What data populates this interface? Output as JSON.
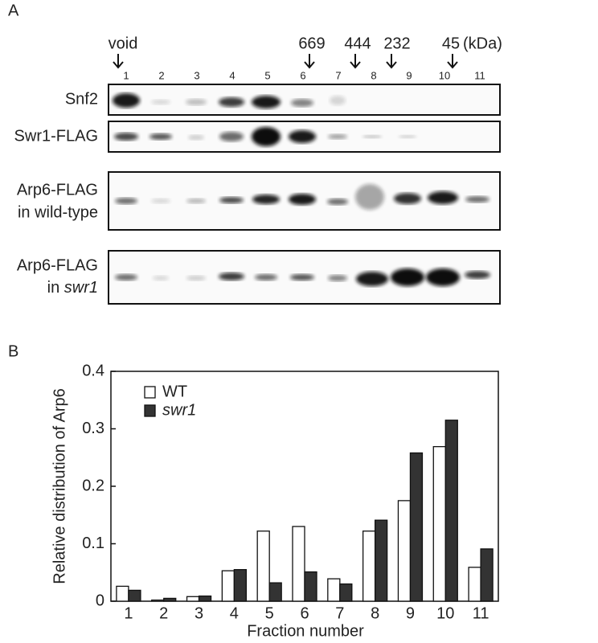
{
  "panel_a": {
    "label": "A",
    "size_markers": [
      "void",
      "669",
      "444",
      "232",
      "45"
    ],
    "size_unit": "(kDa)",
    "lanes": [
      "1",
      "2",
      "3",
      "4",
      "5",
      "6",
      "7",
      "8",
      "9",
      "10",
      "11"
    ],
    "rows": [
      {
        "line1": "Snf2"
      },
      {
        "line1": "Swr1-FLAG"
      },
      {
        "line1": "Arp6-FLAG",
        "line2": "in wild-type"
      },
      {
        "line1": "Arp6-FLAG",
        "line2": "in",
        "line2_italic": "swr1"
      }
    ]
  },
  "chart_data": {
    "type": "bar",
    "panel_label": "B",
    "y_label": "Relative distribution of Arp6",
    "x_label": "Fraction number",
    "categories": [
      "1",
      "2",
      "3",
      "4",
      "5",
      "6",
      "7",
      "8",
      "9",
      "10",
      "11"
    ],
    "series": [
      {
        "name": "WT",
        "color": "#ffffff",
        "font_style": "normal",
        "values": [
          0.026,
          0.002,
          0.008,
          0.053,
          0.122,
          0.13,
          0.039,
          0.122,
          0.175,
          0.269,
          0.059
        ]
      },
      {
        "name": "swr1",
        "color": "#333333",
        "font_style": "italic",
        "values": [
          0.019,
          0.005,
          0.009,
          0.055,
          0.032,
          0.051,
          0.03,
          0.141,
          0.258,
          0.315,
          0.091
        ]
      }
    ],
    "ylim": [
      0,
      0.4
    ],
    "yticks": [
      0,
      0.1,
      0.2,
      0.3,
      0.4
    ],
    "legend": "upper-left"
  }
}
